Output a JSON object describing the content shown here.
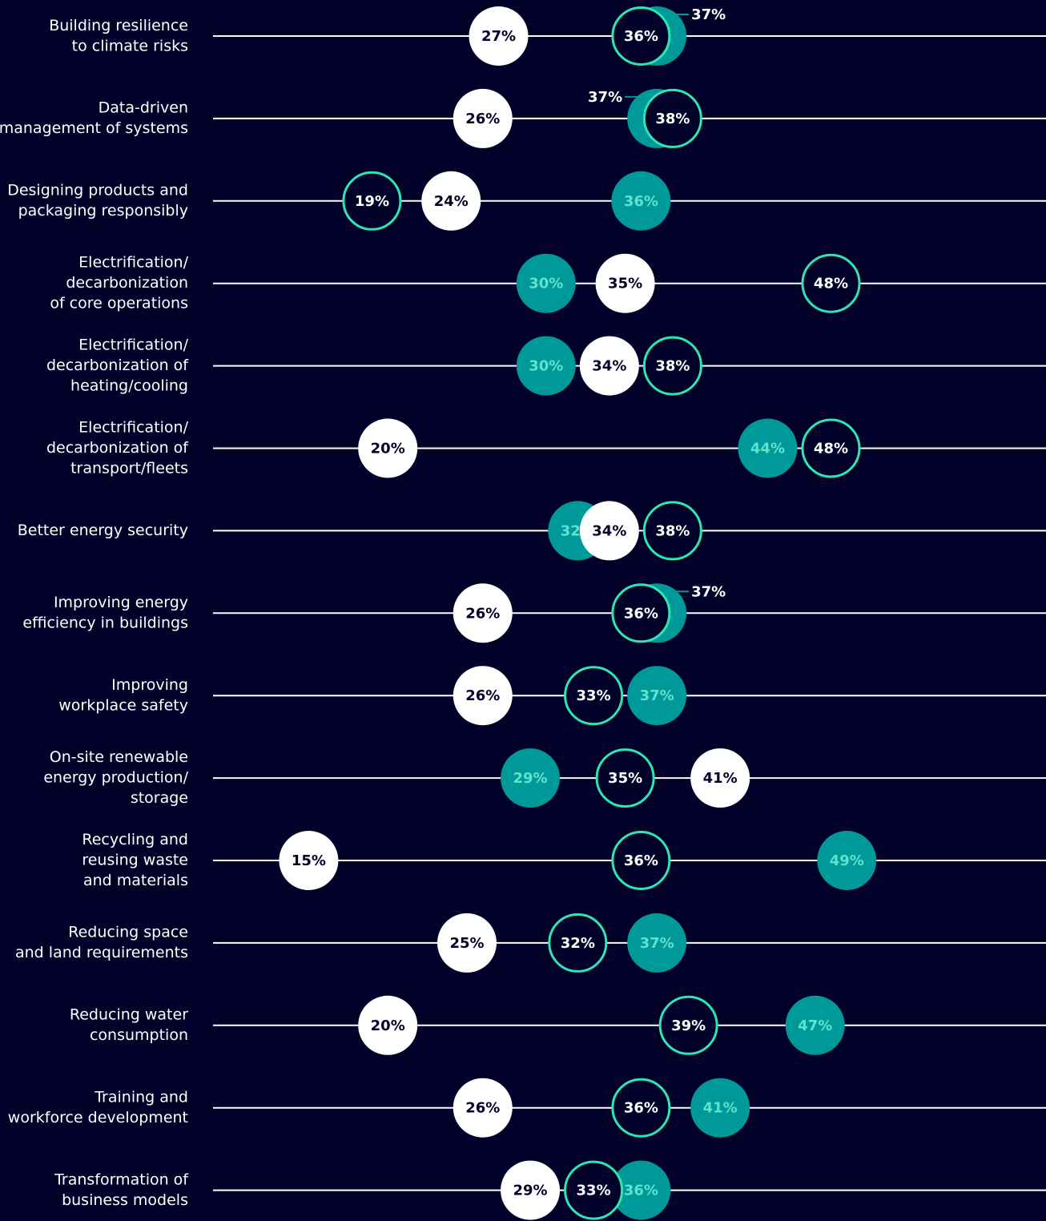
{
  "chart_data": {
    "type": "dot",
    "categories": [
      [
        "Building resilience",
        "to climate risks"
      ],
      [
        "Data-driven",
        "management of systems"
      ],
      [
        "Designing products and",
        "packaging responsibly"
      ],
      [
        "Electrification/",
        "decarbonization",
        "of core operations"
      ],
      [
        "Electrification/",
        "decarbonization of",
        "heating/cooling"
      ],
      [
        "Electrification/",
        "decarbonization of",
        "transport/fleets"
      ],
      [
        "Better energy security"
      ],
      [
        "Improving energy",
        "efficiency in buildings"
      ],
      [
        "Improving",
        "workplace safety"
      ],
      [
        "On-site renewable",
        "energy production/",
        "storage"
      ],
      [
        "Recycling and",
        "reusing waste",
        "and materials"
      ],
      [
        "Reducing space",
        "and land requirements"
      ],
      [
        "Reducing water",
        "consumption"
      ],
      [
        "Training and",
        "workforce development"
      ],
      [
        "Transformation of",
        "business models"
      ]
    ],
    "series": [
      {
        "color": "#009999",
        "style": "filled",
        "values": [
          37,
          37,
          36,
          30,
          30,
          44,
          32,
          37,
          37,
          29,
          49,
          37,
          47,
          41,
          36
        ],
        "value_labels": [
          "37%",
          "37%",
          "36%",
          "30%",
          "30%",
          "44%",
          "32%",
          "37%",
          "37%",
          "29%",
          "49%",
          "37%",
          "47%",
          "41%",
          "36%"
        ]
      },
      {
        "color": "#ffffff",
        "style": "filled",
        "values": [
          27,
          26,
          24,
          35,
          34,
          20,
          34,
          26,
          26,
          41,
          15,
          25,
          20,
          26,
          29
        ],
        "value_labels": [
          "27%",
          "26%",
          "24%",
          "35%",
          "34%",
          "20%",
          "34%",
          "26%",
          "26%",
          "41%",
          "15%",
          "25%",
          "20%",
          "26%",
          "29%"
        ]
      },
      {
        "color": "#2ee6b4",
        "style": "outline",
        "values": [
          36,
          38,
          19,
          48,
          38,
          48,
          38,
          36,
          33,
          35,
          36,
          32,
          39,
          36,
          33
        ],
        "value_labels": [
          "36%",
          "38%",
          "19%",
          "48%",
          "38%",
          "48%",
          "38%",
          "36%",
          "33%",
          "35%",
          "36%",
          "32%",
          "39%",
          "36%",
          "33%"
        ]
      }
    ]
  }
}
